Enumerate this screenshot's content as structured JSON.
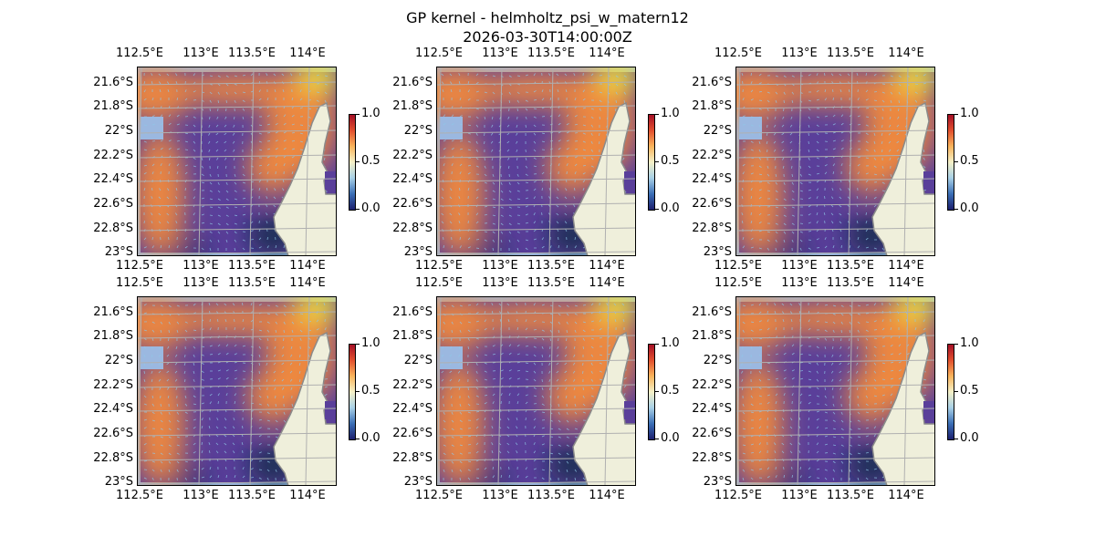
{
  "figure": {
    "title": "GP kernel - helmholtz_psi_w_matern12",
    "subtitle": "2026-03-30T14:00:00Z"
  },
  "axes": {
    "x_ticks": [
      "112.5°E",
      "113°E",
      "113.5°E",
      "114°E"
    ],
    "y_ticks": [
      "21.6°S",
      "21.8°S",
      "22°S",
      "22.2°S",
      "22.4°S",
      "22.6°S",
      "22.8°S",
      "23°S"
    ]
  },
  "colorbar": {
    "ticks": [
      "0.0",
      "0.5",
      "1.0"
    ],
    "range": [
      0.0,
      1.0
    ],
    "colormap": "RdYlBu_r"
  },
  "panels": [
    {
      "id": 1
    },
    {
      "id": 2
    },
    {
      "id": 3
    },
    {
      "id": 4
    },
    {
      "id": 5
    },
    {
      "id": 6
    }
  ],
  "colors": {
    "ocean": "#9bb8e0",
    "land": "#efefdb",
    "coastline": "#8a8a8a",
    "gridlines": "#b0b0b0",
    "field_low": "#5a3f9a",
    "field_high": "#f28a3c",
    "field_max": "#f2e63c",
    "field_deep": "#0b2a4a",
    "vectors": "#8fc8e8"
  }
}
